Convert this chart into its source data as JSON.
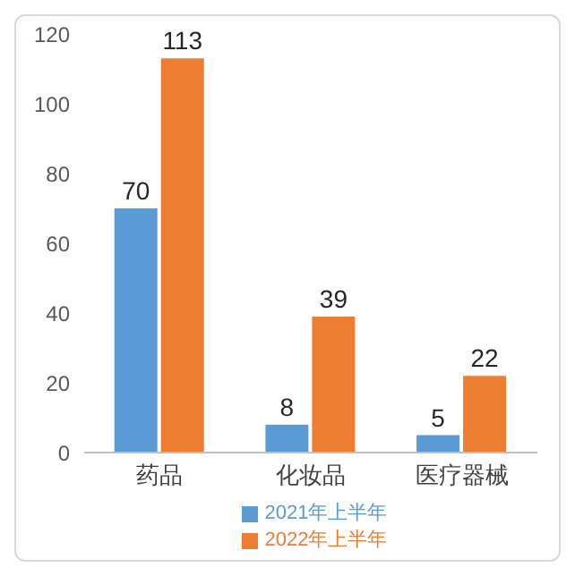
{
  "chart_data": {
    "type": "bar",
    "categories": [
      "药品",
      "化妆品",
      "医疗器械"
    ],
    "series": [
      {
        "name": "2021年上半年",
        "color": "#5b9bd5",
        "values": [
          70,
          8,
          5
        ]
      },
      {
        "name": "2022年上半年",
        "color": "#ed7d31",
        "values": [
          113,
          39,
          22
        ]
      }
    ],
    "ylim": [
      0,
      120
    ],
    "yticks": [
      0,
      20,
      40,
      60,
      80,
      100,
      120
    ],
    "grid": false,
    "legend": "bottom",
    "data_labels": true
  }
}
